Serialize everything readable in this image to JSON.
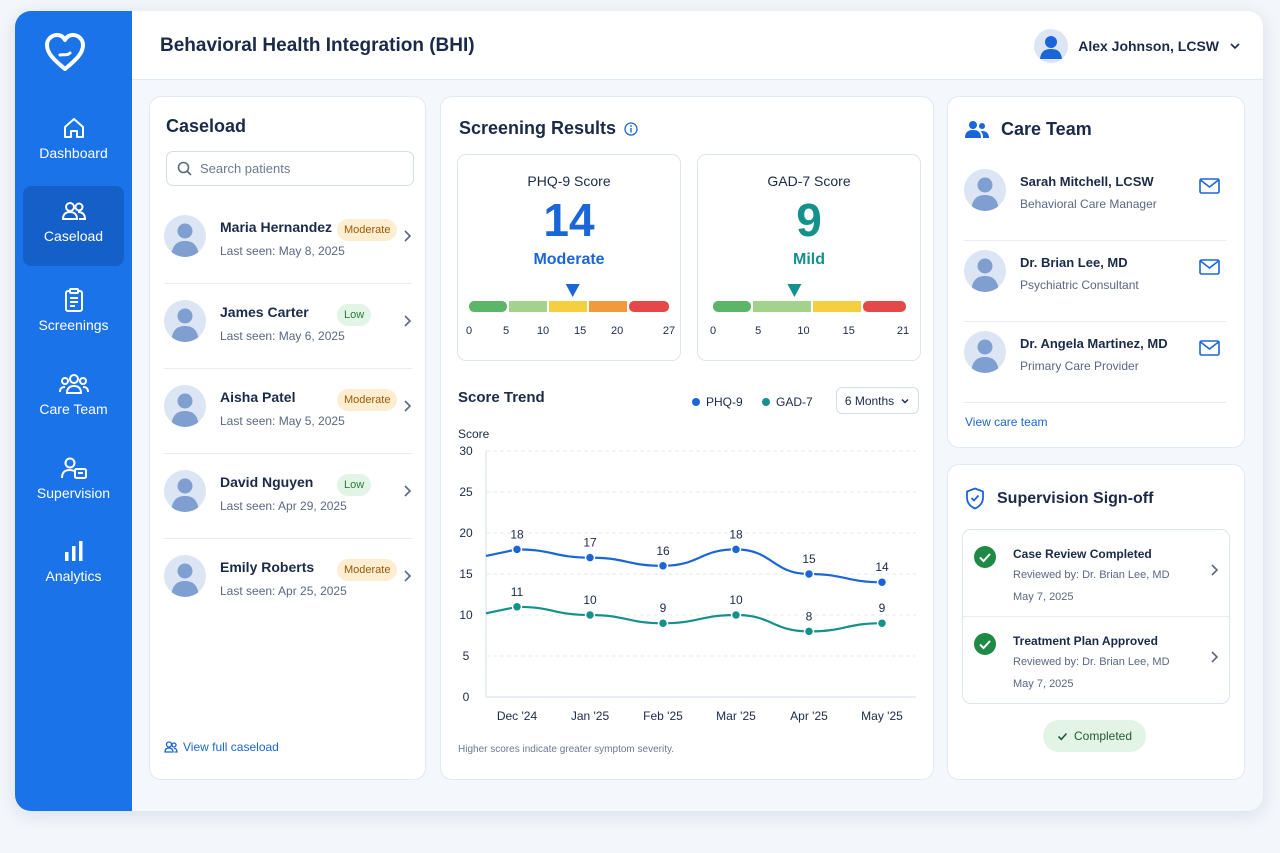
{
  "header": {
    "title": "Behavioral Health Integration (BHI)",
    "user_name": "Alex Johnson, LCSW"
  },
  "sidebar": {
    "items": [
      {
        "label": "Dashboard",
        "icon": "home-icon",
        "active": false
      },
      {
        "label": "Caseload",
        "icon": "users-icon",
        "active": true
      },
      {
        "label": "Screenings",
        "icon": "clipboard-icon",
        "active": false
      },
      {
        "label": "Care Team",
        "icon": "team-icon",
        "active": false
      },
      {
        "label": "Supervision",
        "icon": "supervision-icon",
        "active": false
      },
      {
        "label": "Analytics",
        "icon": "bar-chart-icon",
        "active": false
      }
    ]
  },
  "caseload": {
    "title": "Caseload",
    "search_placeholder": "Search patients",
    "patients": [
      {
        "name": "Maria Hernandez",
        "last_seen": "Last seen: May 8, 2025",
        "severity": "Moderate"
      },
      {
        "name": "James Carter",
        "last_seen": "Last seen: May 6, 2025",
        "severity": "Low"
      },
      {
        "name": "Aisha Patel",
        "last_seen": "Last seen: May 5, 2025",
        "severity": "Moderate"
      },
      {
        "name": "David Nguyen",
        "last_seen": "Last seen: Apr 29, 2025",
        "severity": "Low"
      },
      {
        "name": "Emily Roberts",
        "last_seen": "Last seen: Apr 25, 2025",
        "severity": "Moderate"
      }
    ],
    "view_link": "View full caseload"
  },
  "screening": {
    "title": "Screening Results",
    "phq9": {
      "label": "PHQ-9 Score",
      "value": "14",
      "severity": "Moderate",
      "ticks": [
        "0",
        "5",
        "10",
        "15",
        "20",
        "27"
      ],
      "max": 27,
      "color": "#1a66d8"
    },
    "gad7": {
      "label": "GAD-7 Score",
      "value": "9",
      "severity": "Mild",
      "ticks": [
        "0",
        "5",
        "10",
        "15",
        "21"
      ],
      "max": 21,
      "color": "#14918a"
    },
    "trend_title": "Score Trend",
    "period": "6 Months",
    "footnote": "Higher scores indicate greater symptom severity."
  },
  "chart_data": {
    "type": "line",
    "title": "Score Trend",
    "ylabel": "Score",
    "xlabel": "",
    "ylim": [
      0,
      30
    ],
    "yticks": [
      "0",
      "5",
      "10",
      "15",
      "20",
      "25",
      "30"
    ],
    "categories": [
      "Dec '24",
      "Jan '25",
      "Feb '25",
      "Mar '25",
      "Apr '25",
      "May '25"
    ],
    "series": [
      {
        "name": "PHQ-9",
        "values": [
          18,
          17,
          16,
          18,
          15,
          14
        ],
        "color": "#1a66d8"
      },
      {
        "name": "GAD-7",
        "values": [
          11,
          10,
          9,
          10,
          8,
          9
        ],
        "color": "#14918a"
      }
    ],
    "grid": true,
    "legend": "top-right"
  },
  "care_team": {
    "title": "Care Team",
    "members": [
      {
        "name": "Sarah Mitchell, LCSW",
        "role": "Behavioral Care Manager"
      },
      {
        "name": "Dr. Brian Lee, MD",
        "role": "Psychiatric Consultant"
      },
      {
        "name": "Dr. Angela Martinez, MD",
        "role": "Primary Care Provider"
      }
    ],
    "view_link": "View care team"
  },
  "supervision": {
    "title": "Supervision Sign-off",
    "items": [
      {
        "title": "Case Review Completed",
        "reviewer": "Reviewed by: Dr. Brian Lee, MD",
        "date": "May 7, 2025"
      },
      {
        "title": "Treatment Plan Approved",
        "reviewer": "Reviewed by: Dr. Brian Lee, MD",
        "date": "May 7, 2025"
      }
    ],
    "status": "Completed"
  },
  "colors": {
    "primary": "#1a73e8",
    "phq": "#1a66d8",
    "gad": "#14918a",
    "success": "#1f8a45",
    "moderate_bg": "#fdeed1",
    "low_bg": "#e2f4e6"
  }
}
